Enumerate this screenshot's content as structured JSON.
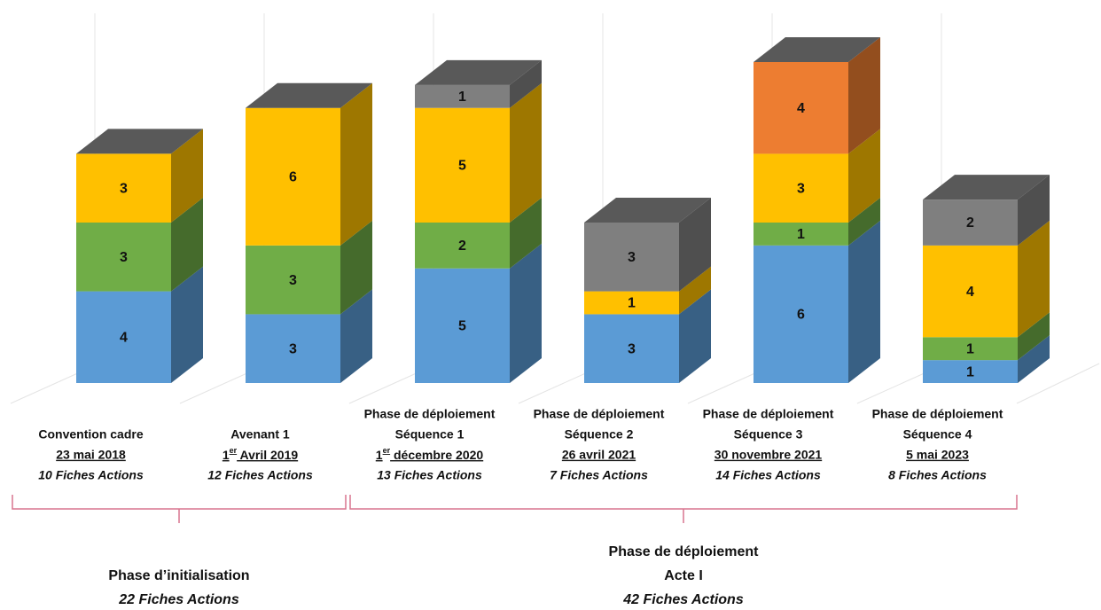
{
  "chart_data": {
    "type": "bar3d-stacked",
    "categories": [
      [
        "Convention cadre",
        "23 mai 2018",
        "10 Fiches Actions"
      ],
      [
        "Avenant 1",
        "1er Avril 2019",
        "12  Fiches Actions"
      ],
      [
        "Phase de déploiement",
        "Séquence 1",
        "1er décembre 2020",
        "13 Fiches Actions"
      ],
      [
        "Phase de déploiement",
        "Séquence 2",
        "26 avril 2021",
        "7 Fiches Actions"
      ],
      [
        "Phase de déploiement",
        "Séquence 3",
        "30 novembre 2021",
        "14 Fiches Actions"
      ],
      [
        "Phase de déploiement",
        "Séquence 4",
        "5 mai 2023",
        "8 Fiches Actions"
      ]
    ],
    "series": [
      {
        "color": "#5b9bd5",
        "values": [
          4,
          3,
          5,
          3,
          6,
          1
        ]
      },
      {
        "color": "#70ad47",
        "values": [
          3,
          3,
          2,
          null,
          1,
          1
        ]
      },
      {
        "color": "#ffc000",
        "values": [
          3,
          6,
          5,
          1,
          3,
          4
        ]
      },
      {
        "color": "#ed7d31",
        "values": [
          null,
          null,
          null,
          null,
          4,
          null
        ]
      },
      {
        "color": "#7f7f7f",
        "values": [
          null,
          null,
          1,
          3,
          null,
          2
        ]
      }
    ],
    "ylim": [
      0,
      14
    ],
    "groups": [
      {
        "lines": [
          "Phase d’initialisation"
        ],
        "total": "22  Fiches Actions"
      },
      {
        "lines": [
          "Phase de déploiement",
          "Acte I"
        ],
        "total": "42 Fiches Actions"
      }
    ]
  }
}
